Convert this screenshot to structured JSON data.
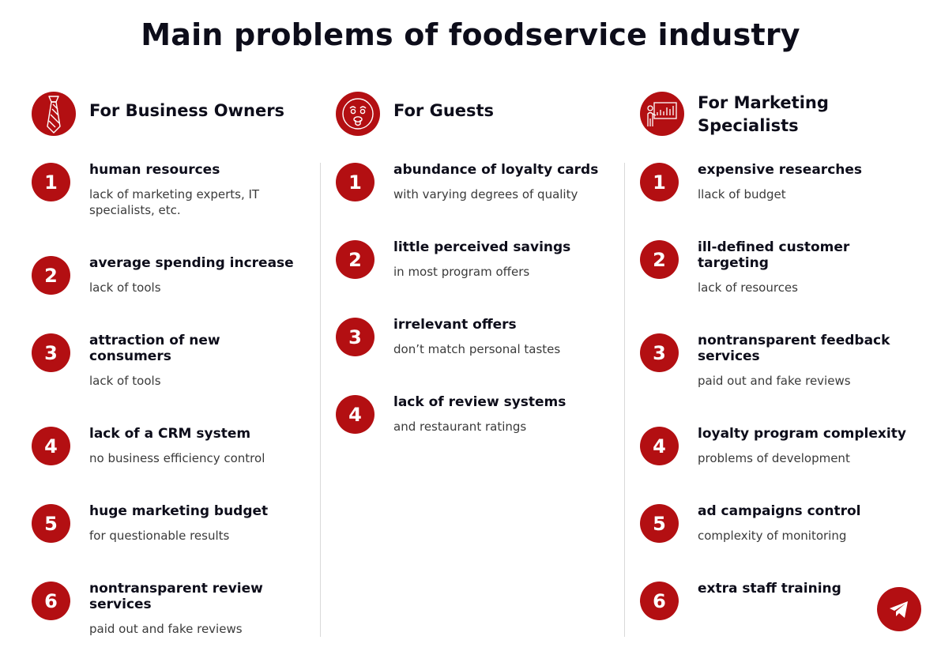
{
  "title": "Main problems of foodservice industry",
  "colors": {
    "accent": "#b30f12",
    "text": "#0d0d1a",
    "muted": "#3a3a3a"
  },
  "columns": [
    {
      "title": "For Business Owners",
      "icon": "necktie-icon",
      "items": [
        {
          "number": "1",
          "title": "human resources",
          "desc": "lack of marketing experts, IT specialists, etc."
        },
        {
          "number": "2",
          "title": "average spending increase",
          "desc": "lack of tools"
        },
        {
          "number": "3",
          "title": "attraction of new consumers",
          "desc": "lack of tools"
        },
        {
          "number": "4",
          "title": "lack of a CRM system",
          "desc": "no business efficiency control"
        },
        {
          "number": "5",
          "title": "huge marketing budget",
          "desc": "for questionable results"
        },
        {
          "number": "6",
          "title": "nontransparent review services",
          "desc": "paid out and fake reviews"
        }
      ]
    },
    {
      "title": "For Guests",
      "icon": "shocked-face-icon",
      "items": [
        {
          "number": "1",
          "title": "abundance of loyalty cards",
          "desc": "with varying degrees of quality"
        },
        {
          "number": "2",
          "title": "little perceived savings",
          "desc": "in most program offers"
        },
        {
          "number": "3",
          "title": "irrelevant offers",
          "desc": "don’t match personal tastes"
        },
        {
          "number": "4",
          "title": "lack of review systems",
          "desc": "and restaurant ratings"
        }
      ]
    },
    {
      "title": "For Marketing Specialists",
      "icon": "presentation-board-icon",
      "items": [
        {
          "number": "1",
          "title": "expensive researches",
          "desc": "llack of budget"
        },
        {
          "number": "2",
          "title": "ill-defined customer targeting",
          "desc": "lack of resources"
        },
        {
          "number": "3",
          "title": "nontransparent feedback services",
          "desc": "paid out and fake reviews"
        },
        {
          "number": "4",
          "title": "loyalty program complexity",
          "desc": "problems of development"
        },
        {
          "number": "5",
          "title": "ad campaigns control",
          "desc": "complexity of monitoring"
        },
        {
          "number": "6",
          "title": "extra staff training",
          "desc": ""
        }
      ]
    }
  ],
  "fab_icon": "telegram-icon"
}
